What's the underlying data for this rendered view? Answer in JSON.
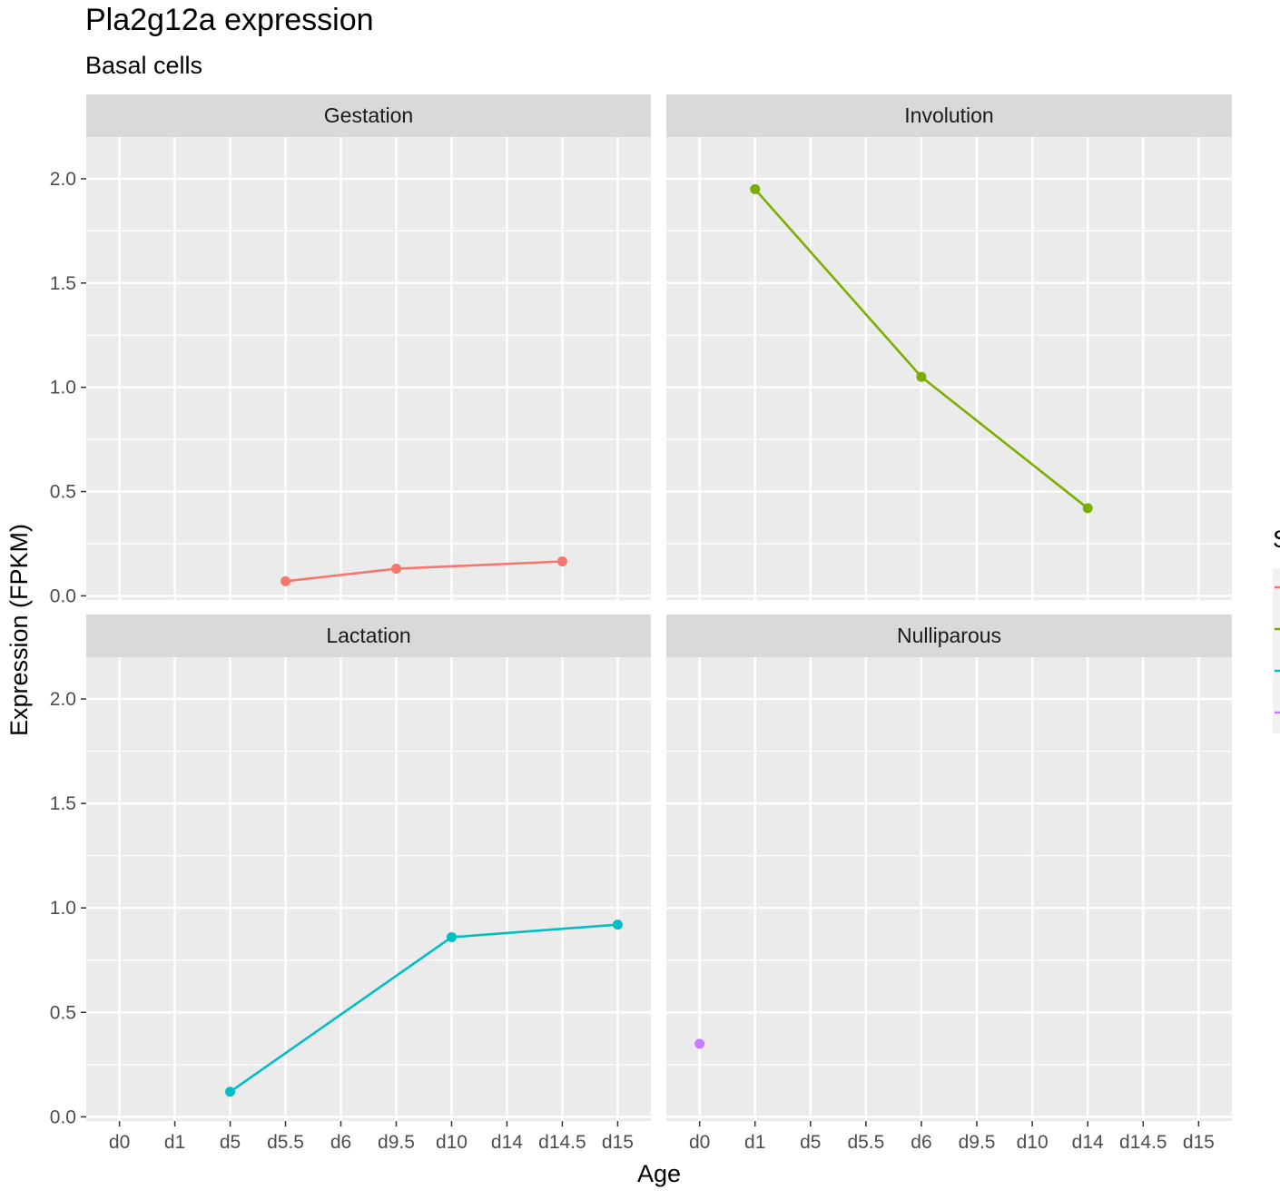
{
  "chart_data": {
    "type": "line",
    "title": "Pla2g12a expression",
    "subtitle": "Basal cells",
    "xlabel": "Age",
    "ylabel": "Expression (FPKM)",
    "x_categories": [
      "d0",
      "d1",
      "d5",
      "d5.5",
      "d6",
      "d9.5",
      "d10",
      "d14",
      "d14.5",
      "d15"
    ],
    "y_ticks": [
      "0.0",
      "0.5",
      "1.0",
      "1.5",
      "2.0"
    ],
    "ylim": [
      -0.02,
      2.2
    ],
    "grid": true,
    "legend_position": "right",
    "legend_title": "S",
    "facets": [
      {
        "label": "Gestation",
        "color": "#F8766D",
        "points": [
          {
            "x": "d5.5",
            "y": 0.07
          },
          {
            "x": "d9.5",
            "y": 0.13
          },
          {
            "x": "d14.5",
            "y": 0.165
          }
        ]
      },
      {
        "label": "Involution",
        "color": "#7CAE00",
        "points": [
          {
            "x": "d1",
            "y": 1.95
          },
          {
            "x": "d6",
            "y": 1.05
          },
          {
            "x": "d14",
            "y": 0.42
          }
        ]
      },
      {
        "label": "Lactation",
        "color": "#00BFC4",
        "points": [
          {
            "x": "d5",
            "y": 0.12
          },
          {
            "x": "d10",
            "y": 0.86
          },
          {
            "x": "d15",
            "y": 0.92
          }
        ]
      },
      {
        "label": "Nulliparous",
        "color": "#C77CFF",
        "points": [
          {
            "x": "d0",
            "y": 0.35
          }
        ]
      }
    ]
  }
}
